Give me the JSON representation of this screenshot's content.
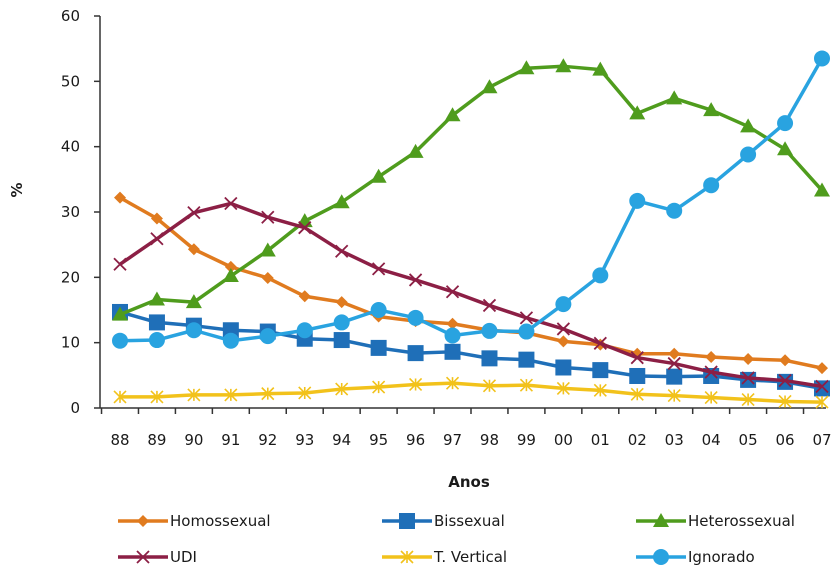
{
  "chart_data": {
    "type": "line",
    "title": "",
    "xlabel": "Anos",
    "ylabel": "%",
    "ylim": [
      0,
      60
    ],
    "yticks": [
      0,
      10,
      20,
      30,
      40,
      50,
      60
    ],
    "grid": false,
    "legend_position": "bottom",
    "categories": [
      "88",
      "89",
      "90",
      "91",
      "92",
      "93",
      "94",
      "95",
      "96",
      "97",
      "98",
      "99",
      "00",
      "01",
      "02",
      "03",
      "04",
      "05",
      "06",
      "07"
    ],
    "series": [
      {
        "name": "Homossexual",
        "color": "#e07b1f",
        "marker": "diamond",
        "values": [
          32.2,
          29.0,
          24.3,
          21.6,
          19.9,
          17.1,
          16.2,
          14.0,
          13.3,
          12.9,
          11.9,
          11.5,
          10.2,
          9.7,
          8.3,
          8.3,
          7.8,
          7.5,
          7.3,
          6.1
        ]
      },
      {
        "name": "Bissexual",
        "color": "#1f6fb8",
        "marker": "square",
        "values": [
          14.7,
          13.1,
          12.6,
          11.9,
          11.7,
          10.6,
          10.4,
          9.2,
          8.4,
          8.6,
          7.6,
          7.4,
          6.2,
          5.8,
          4.9,
          4.8,
          4.9,
          4.3,
          4.0,
          3.0
        ]
      },
      {
        "name": "Heterossexual",
        "color": "#4f9c1d",
        "marker": "triangle",
        "values": [
          14.3,
          16.6,
          16.2,
          20.2,
          24.1,
          28.6,
          31.5,
          35.4,
          39.2,
          44.8,
          49.1,
          52.0,
          52.3,
          51.8,
          45.1,
          47.4,
          45.6,
          43.1,
          39.6,
          33.3
        ]
      },
      {
        "name": "UDI",
        "color": "#8c1f45",
        "marker": "x",
        "values": [
          22.0,
          25.9,
          29.9,
          31.3,
          29.2,
          27.6,
          24.0,
          21.3,
          19.6,
          17.8,
          15.7,
          13.8,
          12.1,
          9.9,
          7.7,
          6.8,
          5.5,
          4.6,
          4.2,
          3.3
        ]
      },
      {
        "name": "T. Vertical",
        "color": "#f2c21b",
        "marker": "asterisk",
        "values": [
          1.7,
          1.7,
          2.0,
          2.0,
          2.2,
          2.3,
          2.9,
          3.2,
          3.6,
          3.8,
          3.4,
          3.5,
          3.0,
          2.7,
          2.1,
          1.9,
          1.6,
          1.3,
          1.0,
          0.9
        ]
      },
      {
        "name": "Ignorado",
        "color": "#29a3e0",
        "marker": "circle",
        "values": [
          10.3,
          10.4,
          11.9,
          10.3,
          11.0,
          11.9,
          13.1,
          15.0,
          13.8,
          11.1,
          11.8,
          11.7,
          15.9,
          20.3,
          31.7,
          30.2,
          34.1,
          38.8,
          43.6,
          53.5
        ]
      }
    ]
  }
}
